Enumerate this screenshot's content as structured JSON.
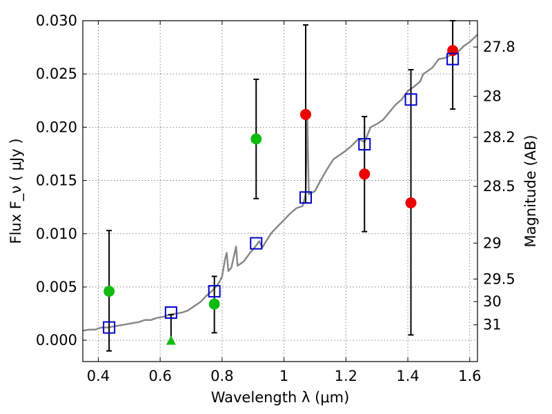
{
  "chart_data": {
    "type": "scatter",
    "title": "",
    "xlabel": "Wavelength  λ (μm)",
    "ylabel": "Flux  F_ν  ( μJy )",
    "y2label": "Magnitude (AB)",
    "xlim": [
      0.35,
      1.625
    ],
    "ylim": [
      -0.002,
      0.03
    ],
    "grid": true,
    "x_ticks": [
      0.4,
      0.6,
      0.8,
      1.0,
      1.2,
      1.4,
      1.6
    ],
    "x_tick_labels": [
      "0.4",
      "0.6",
      "0.8",
      "1",
      "1.2",
      "1.4",
      "1.6"
    ],
    "y_ticks": [
      0.0,
      0.005,
      0.01,
      0.015,
      0.02,
      0.025,
      0.03
    ],
    "y_tick_labels": [
      "0.000",
      "0.005",
      "0.010",
      "0.015",
      "0.020",
      "0.025",
      "0.030"
    ],
    "magnitude_ticks": [
      {
        "label": "27.8",
        "flux": 0.02753
      },
      {
        "label": "28",
        "flux": 0.0229
      },
      {
        "label": "28.2",
        "flux": 0.01905
      },
      {
        "label": "28.5",
        "flux": 0.01445
      },
      {
        "label": "29",
        "flux": 0.00912
      },
      {
        "label": "29.5",
        "flux": 0.00575
      },
      {
        "label": "30",
        "flux": 0.00363
      },
      {
        "label": "31",
        "flux": 0.00145
      }
    ],
    "colors": {
      "green": "#10bb10",
      "red": "#ee0000",
      "model": "#888888",
      "box": "#0000cc",
      "errorbar": "#000000"
    },
    "series": [
      {
        "marker": "circle",
        "color": "#10bb10",
        "points": [
          {
            "x": 0.435,
            "y": 0.0046,
            "yerr_low": -0.001,
            "yerr_high": 0.0103
          },
          {
            "x": 0.775,
            "y": 0.0034,
            "yerr_low": 0.0007,
            "yerr_high": 0.006
          },
          {
            "x": 0.91,
            "y": 0.0189,
            "yerr_low": 0.0133,
            "yerr_high": 0.0245
          }
        ]
      },
      {
        "marker": "triangle",
        "color": "#10bb10",
        "points": [
          {
            "x": 0.635,
            "y": -0.0001,
            "yerr_low": -0.0001,
            "yerr_high": 0.0024
          }
        ]
      },
      {
        "marker": "circle",
        "color": "#ee0000",
        "points": [
          {
            "x": 1.07,
            "y": 0.0212,
            "yerr_low": 0.0129,
            "yerr_high": 0.0296
          },
          {
            "x": 1.26,
            "y": 0.0156,
            "yerr_low": 0.0102,
            "yerr_high": 0.021
          },
          {
            "x": 1.41,
            "y": 0.0129,
            "yerr_low": 0.0005,
            "yerr_high": 0.0254
          },
          {
            "x": 1.545,
            "y": 0.0272,
            "yerr_low": 0.0217,
            "yerr_high": 0.03
          }
        ]
      },
      {
        "marker": "square",
        "color": "#0000cc",
        "points": [
          {
            "x": 0.435,
            "y": 0.0012
          },
          {
            "x": 0.635,
            "y": 0.0026
          },
          {
            "x": 0.775,
            "y": 0.0046
          },
          {
            "x": 0.91,
            "y": 0.0091
          },
          {
            "x": 1.07,
            "y": 0.0134
          },
          {
            "x": 1.26,
            "y": 0.0184
          },
          {
            "x": 1.41,
            "y": 0.0226
          },
          {
            "x": 1.545,
            "y": 0.0264
          }
        ]
      },
      {
        "marker": "line",
        "color": "#888888",
        "points": [
          [
            0.35,
            0.0009
          ],
          [
            0.37,
            0.001
          ],
          [
            0.39,
            0.001
          ],
          [
            0.41,
            0.0012
          ],
          [
            0.43,
            0.0012
          ],
          [
            0.45,
            0.0013
          ],
          [
            0.47,
            0.0014
          ],
          [
            0.49,
            0.0015
          ],
          [
            0.51,
            0.0016
          ],
          [
            0.53,
            0.0017
          ],
          [
            0.55,
            0.0019
          ],
          [
            0.57,
            0.0019
          ],
          [
            0.59,
            0.0021
          ],
          [
            0.61,
            0.0022
          ],
          [
            0.63,
            0.0024
          ],
          [
            0.65,
            0.0025
          ],
          [
            0.67,
            0.0026
          ],
          [
            0.69,
            0.0028
          ],
          [
            0.71,
            0.0032
          ],
          [
            0.73,
            0.0036
          ],
          [
            0.75,
            0.0042
          ],
          [
            0.77,
            0.0047
          ],
          [
            0.79,
            0.0054
          ],
          [
            0.8,
            0.006
          ],
          [
            0.81,
            0.0077
          ],
          [
            0.815,
            0.0082
          ],
          [
            0.82,
            0.0065
          ],
          [
            0.83,
            0.0068
          ],
          [
            0.845,
            0.0088
          ],
          [
            0.85,
            0.007
          ],
          [
            0.87,
            0.0074
          ],
          [
            0.89,
            0.0082
          ],
          [
            0.905,
            0.0087
          ],
          [
            0.92,
            0.0093
          ],
          [
            0.93,
            0.0087
          ],
          [
            0.94,
            0.0092
          ],
          [
            0.96,
            0.0101
          ],
          [
            0.98,
            0.0107
          ],
          [
            1.0,
            0.0113
          ],
          [
            1.02,
            0.0119
          ],
          [
            1.04,
            0.0124
          ],
          [
            1.06,
            0.0126
          ],
          [
            1.065,
            0.0131
          ],
          [
            1.07,
            0.0138
          ],
          [
            1.075,
            0.0215
          ],
          [
            1.08,
            0.0137
          ],
          [
            1.1,
            0.014
          ],
          [
            1.12,
            0.0151
          ],
          [
            1.14,
            0.0161
          ],
          [
            1.16,
            0.017
          ],
          [
            1.18,
            0.0174
          ],
          [
            1.2,
            0.0178
          ],
          [
            1.22,
            0.0183
          ],
          [
            1.24,
            0.0189
          ],
          [
            1.26,
            0.0186
          ],
          [
            1.28,
            0.02
          ],
          [
            1.3,
            0.0203
          ],
          [
            1.32,
            0.0207
          ],
          [
            1.34,
            0.0214
          ],
          [
            1.36,
            0.0221
          ],
          [
            1.38,
            0.0226
          ],
          [
            1.4,
            0.0234
          ],
          [
            1.42,
            0.0238
          ],
          [
            1.44,
            0.0243
          ],
          [
            1.45,
            0.025
          ],
          [
            1.46,
            0.0252
          ],
          [
            1.48,
            0.0256
          ],
          [
            1.5,
            0.0264
          ],
          [
            1.52,
            0.0265
          ],
          [
            1.54,
            0.0268
          ],
          [
            1.56,
            0.027
          ],
          [
            1.58,
            0.0276
          ],
          [
            1.6,
            0.028
          ],
          [
            1.625,
            0.0287
          ]
        ]
      }
    ]
  }
}
